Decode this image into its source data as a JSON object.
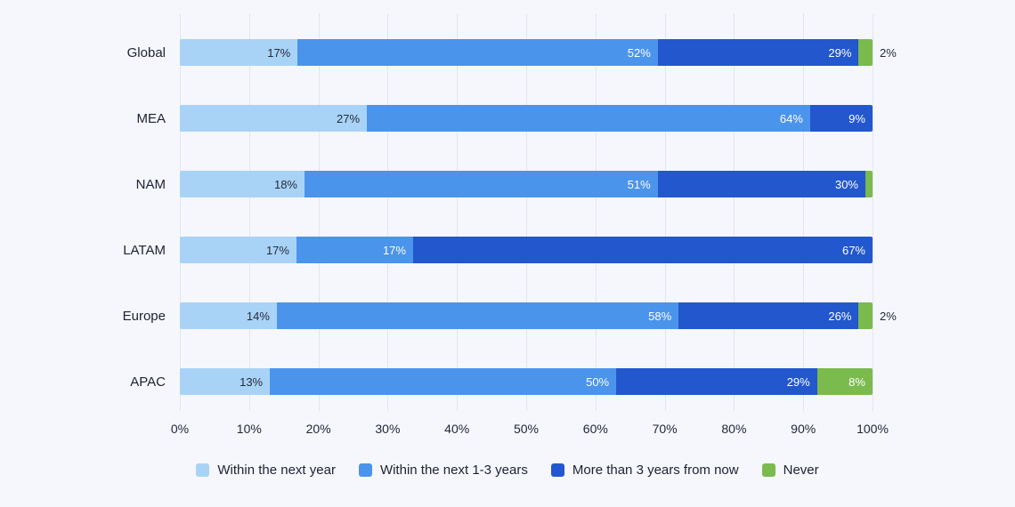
{
  "background_color": "#f5f7fc",
  "chart_data": {
    "type": "bar",
    "orientation": "horizontal",
    "stacked": true,
    "title": "",
    "xlabel": "",
    "ylabel": "",
    "xlim": [
      0,
      100
    ],
    "grid": true,
    "legend_position": "bottom",
    "categories": [
      "Global",
      "MEA",
      "NAM",
      "LATAM",
      "Europe",
      "APAC"
    ],
    "series": [
      {
        "name": "Within the next year",
        "color": "#A8D3F7",
        "values": [
          17,
          27,
          18,
          17,
          14,
          13
        ]
      },
      {
        "name": "Within the next 1-3 years",
        "color": "#4B94EB",
        "values": [
          52,
          64,
          51,
          17,
          58,
          50
        ]
      },
      {
        "name": "More than 3 years from now",
        "color": "#2257CE",
        "values": [
          29,
          9,
          30,
          67,
          26,
          29
        ]
      },
      {
        "name": "Never",
        "color": "#7BBA4D",
        "values": [
          2,
          0,
          1,
          0,
          2,
          8
        ]
      }
    ],
    "bar_labels": [
      [
        "17%",
        "52%",
        "29%",
        ""
      ],
      [
        "27%",
        "64%",
        "9%",
        ""
      ],
      [
        "18%",
        "51%",
        "30%",
        ""
      ],
      [
        "17%",
        "17%",
        "67%",
        ""
      ],
      [
        "14%",
        "58%",
        "26%",
        ""
      ],
      [
        "13%",
        "50%",
        "29%",
        "8%"
      ]
    ],
    "outside_labels": [
      "2%",
      "",
      "",
      "",
      "2%",
      ""
    ],
    "x_ticks": [
      "0%",
      "10%",
      "20%",
      "30%",
      "40%",
      "50%",
      "60%",
      "70%",
      "80%",
      "90%",
      "100%"
    ]
  }
}
